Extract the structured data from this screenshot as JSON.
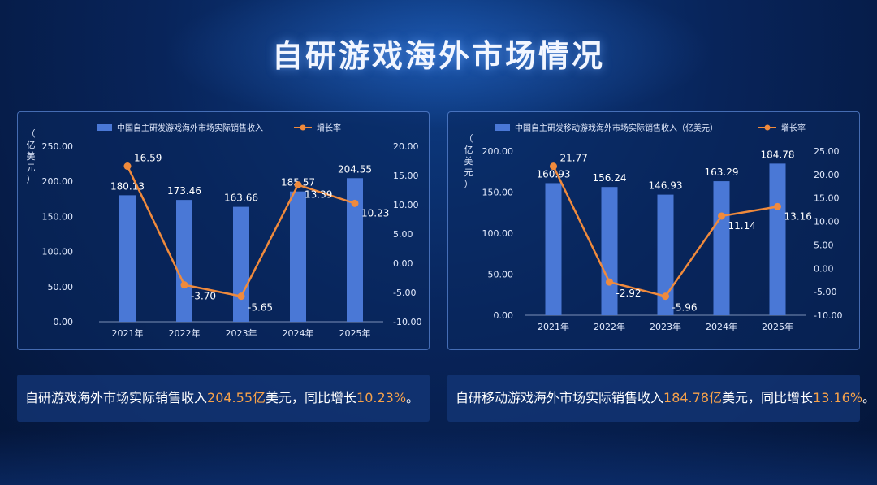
{
  "page_title": "自研游戏海外市场情况",
  "colors": {
    "bar": "#4a78d6",
    "line": "#f08a3c",
    "highlight": "#f7a24a",
    "axis_text": "#e4ecff"
  },
  "chart_data": [
    {
      "type": "bar",
      "title": "",
      "ylabel": "（亿美元）",
      "categories": [
        "2021年",
        "2022年",
        "2023年",
        "2024年",
        "2025年"
      ],
      "y_ticks": [
        "250.00",
        "200.00",
        "150.00",
        "100.00",
        "50.00",
        "0.00"
      ],
      "ylim": [
        0,
        250
      ],
      "y2_ticks": [
        "20.00",
        "15.00",
        "10.00",
        "5.00",
        "0.00",
        "-5.00",
        "-10.00"
      ],
      "y2lim": [
        -10,
        20
      ],
      "legend_position": "top",
      "series": [
        {
          "name": "中国自主研发游戏海外市场实际销售收入",
          "type": "bar",
          "values": [
            180.13,
            173.46,
            163.66,
            185.57,
            204.55
          ],
          "labels": [
            "180.13",
            "173.46",
            "163.66",
            "185.57",
            "204.55"
          ]
        },
        {
          "name": "增长率",
          "type": "line",
          "axis": "right",
          "values": [
            16.59,
            -3.7,
            -5.65,
            13.39,
            10.23
          ],
          "labels": [
            "16.59",
            "-3.70",
            "-5.65",
            "13.39",
            "10.23"
          ]
        }
      ]
    },
    {
      "type": "bar",
      "title": "",
      "ylabel": "（亿美元）",
      "categories": [
        "2021年",
        "2022年",
        "2023年",
        "2024年",
        "2025年"
      ],
      "y_ticks": [
        "200.00",
        "150.00",
        "100.00",
        "50.00",
        "0.00"
      ],
      "ylim": [
        0,
        200
      ],
      "y2_ticks": [
        "25.00",
        "20.00",
        "15.00",
        "10.00",
        "5.00",
        "0.00",
        "-5.00",
        "-10.00"
      ],
      "y2lim": [
        -10,
        25
      ],
      "legend_position": "top",
      "series": [
        {
          "name": "中国自主研发移动游戏海外市场实际销售收入（亿美元）",
          "type": "bar",
          "values": [
            160.93,
            156.24,
            146.93,
            163.29,
            184.78
          ],
          "labels": [
            "160.93",
            "156.24",
            "146.93",
            "163.29",
            "184.78"
          ]
        },
        {
          "name": "增长率",
          "type": "line",
          "axis": "right",
          "values": [
            21.77,
            -2.92,
            -5.96,
            11.14,
            13.16
          ],
          "labels": [
            "21.77",
            "-2.92",
            "-5.96",
            "11.14",
            "13.16"
          ]
        }
      ]
    }
  ],
  "summaries": [
    {
      "prefix": "自研游戏海外市场实际销售收入",
      "amount": "204.55亿",
      "middle": "美元，同比增长",
      "rate": "10.23%",
      "suffix": "。"
    },
    {
      "prefix": "自研移动游戏海外市场实际销售收入",
      "amount": "184.78亿",
      "middle": "美元，同比增长",
      "rate": "13.16%",
      "suffix": "。"
    }
  ]
}
